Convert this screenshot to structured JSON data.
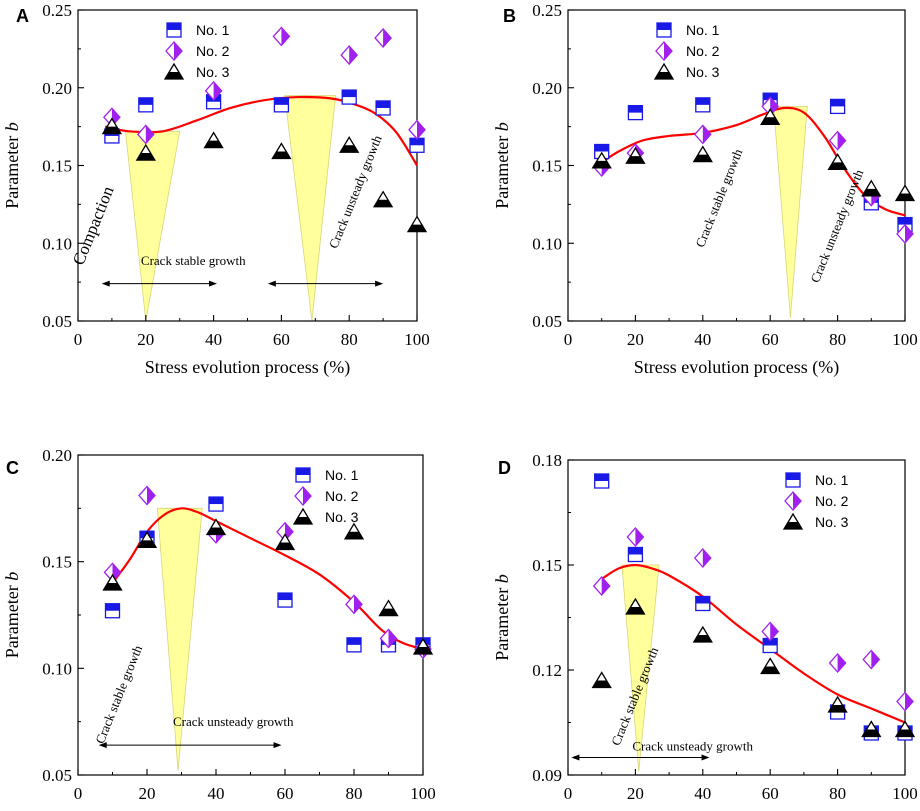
{
  "colors": {
    "no1": "#1a1ae6",
    "no2": "#a020f0",
    "no3": "#000000",
    "fit": "#ff0000",
    "zone": "#ffff8a",
    "zone_edge": "#d6d67a",
    "axis": "#000000"
  },
  "chart_data": [
    {
      "panel": "A",
      "type": "scatter",
      "xlabel": "Stress evolution process (%)",
      "ylabel": "Parameter b",
      "xlim": [
        0,
        100
      ],
      "ylim": [
        0.05,
        0.25
      ],
      "xticks": [
        0,
        20,
        40,
        60,
        80,
        100
      ],
      "xtick_labels": [
        "0",
        "20",
        "40",
        "60",
        "80",
        "100"
      ],
      "yticks": [
        0.05,
        0.1,
        0.15,
        0.2,
        0.25
      ],
      "ytick_labels": [
        "0.05",
        "0.10",
        "0.15",
        "0.20",
        "0.25"
      ],
      "legend": [
        "No. 1",
        "No. 2",
        "No. 3"
      ],
      "legend_position": "top-left",
      "x": [
        10,
        20,
        40,
        60,
        80,
        90,
        100
      ],
      "series": [
        {
          "name": "No. 1",
          "marker": "square-half",
          "values": [
            0.169,
            0.189,
            0.191,
            0.189,
            0.194,
            0.187,
            0.163
          ]
        },
        {
          "name": "No. 2",
          "marker": "diamond-half",
          "values": [
            0.181,
            0.17,
            0.198,
            0.233,
            0.221,
            0.232,
            0.173
          ]
        },
        {
          "name": "No. 3",
          "marker": "triangle-half",
          "values": [
            0.175,
            0.158,
            0.166,
            0.159,
            0.163,
            0.128,
            0.112
          ]
        }
      ],
      "fit_curve": {
        "x": [
          8,
          15,
          25,
          35,
          45,
          55,
          65,
          75,
          82,
          88,
          94,
          100
        ],
        "y": [
          0.175,
          0.172,
          0.172,
          0.179,
          0.187,
          0.192,
          0.194,
          0.193,
          0.189,
          0.183,
          0.171,
          0.15
        ]
      },
      "zones": [
        {
          "x0": 14,
          "x1": 30,
          "ytop": 0.172,
          "apex_x": 20,
          "apex_y": 0.05
        },
        {
          "x0": 61,
          "x1": 76,
          "ytop": 0.195,
          "apex_x": 69,
          "apex_y": 0.05
        }
      ],
      "annotations": [
        {
          "text": "Compaction",
          "x": 6,
          "y": 0.11,
          "rotate": -68,
          "size": 17
        },
        {
          "text": "Crack stable growth",
          "x": 34,
          "y": 0.086,
          "rotate": 0,
          "size": 13
        },
        {
          "text": "Crack unsteady growth",
          "x": 83,
          "y": 0.132,
          "rotate": -68,
          "size": 13
        }
      ],
      "arrows": [
        {
          "x0": 7,
          "x1": 41,
          "y": 0.074
        },
        {
          "x0": 56,
          "x1": 90,
          "y": 0.074
        }
      ]
    },
    {
      "panel": "B",
      "type": "scatter",
      "xlabel": "Stress evolution process (%)",
      "ylabel": "Parameter b",
      "xlim": [
        0,
        100
      ],
      "ylim": [
        0.05,
        0.25
      ],
      "xticks": [
        0,
        20,
        40,
        60,
        80,
        100
      ],
      "xtick_labels": [
        "0",
        "20",
        "40",
        "60",
        "80",
        "100"
      ],
      "yticks": [
        0.05,
        0.1,
        0.15,
        0.2,
        0.25
      ],
      "ytick_labels": [
        "0.05",
        "0.10",
        "0.15",
        "0.20",
        "0.25"
      ],
      "legend": [
        "No. 1",
        "No. 2",
        "No. 3"
      ],
      "legend_position": "top-left",
      "x": [
        10,
        20,
        40,
        60,
        80,
        90,
        100
      ],
      "series": [
        {
          "name": "No. 1",
          "marker": "square-half",
          "values": [
            0.159,
            0.184,
            0.189,
            0.192,
            0.188,
            0.126,
            0.112
          ]
        },
        {
          "name": "No. 2",
          "marker": "diamond-half",
          "values": [
            0.149,
            0.158,
            0.17,
            0.188,
            0.166,
            0.13,
            0.106
          ]
        },
        {
          "name": "No. 3",
          "marker": "triangle-half",
          "values": [
            0.153,
            0.156,
            0.157,
            0.181,
            0.152,
            0.135,
            0.132
          ]
        }
      ],
      "fit_curve": {
        "x": [
          10,
          15,
          22,
          30,
          40,
          50,
          58,
          64,
          70,
          76,
          82,
          88,
          94,
          100
        ],
        "y": [
          0.152,
          0.159,
          0.166,
          0.169,
          0.171,
          0.176,
          0.183,
          0.187,
          0.184,
          0.169,
          0.148,
          0.131,
          0.122,
          0.118
        ]
      },
      "zones": [
        {
          "x0": 61,
          "x1": 71,
          "ytop": 0.188,
          "apex_x": 66,
          "apex_y": 0.052
        }
      ],
      "annotations": [
        {
          "text": "Crack stable growth",
          "x": 46,
          "y": 0.128,
          "rotate": -68,
          "size": 13
        },
        {
          "text": "Crack unsteady growth",
          "x": 81,
          "y": 0.11,
          "rotate": -68,
          "size": 13
        }
      ],
      "arrows": []
    },
    {
      "panel": "C",
      "type": "scatter",
      "xlabel": "Stress evolution process (%)",
      "ylabel": "Parameter b",
      "xlim": [
        0,
        100
      ],
      "ylim": [
        0.05,
        0.2
      ],
      "xticks": [
        0,
        20,
        40,
        60,
        80,
        100
      ],
      "xtick_labels": [
        "0",
        "20",
        "40",
        "60",
        "80",
        "100"
      ],
      "yticks": [
        0.05,
        0.1,
        0.15,
        0.2
      ],
      "ytick_labels": [
        "0.05",
        "0.10",
        "0.15",
        "0.20"
      ],
      "legend": [
        "No. 1",
        "No. 2",
        "No. 3"
      ],
      "legend_position": "top-right",
      "x": [
        10,
        20,
        40,
        60,
        80,
        90,
        100
      ],
      "series": [
        {
          "name": "No. 1",
          "marker": "square-half",
          "values": [
            0.127,
            0.161,
            0.177,
            0.132,
            0.111,
            0.111,
            0.111
          ]
        },
        {
          "name": "No. 2",
          "marker": "diamond-half",
          "values": [
            0.145,
            0.181,
            0.163,
            0.164,
            0.13,
            0.114,
            0.109
          ]
        },
        {
          "name": "No. 3",
          "marker": "triangle-half",
          "values": [
            0.14,
            0.16,
            0.166,
            0.159,
            0.164,
            0.128,
            0.11
          ]
        }
      ],
      "fit_curve": {
        "x": [
          10,
          15,
          20,
          25,
          30,
          35,
          40,
          50,
          60,
          70,
          80,
          88,
          94,
          100
        ],
        "y": [
          0.14,
          0.151,
          0.164,
          0.172,
          0.175,
          0.173,
          0.169,
          0.161,
          0.153,
          0.144,
          0.131,
          0.118,
          0.112,
          0.109
        ]
      },
      "zones": [
        {
          "x0": 23,
          "x1": 36,
          "ytop": 0.175,
          "apex_x": 29,
          "apex_y": 0.052
        }
      ],
      "annotations": [
        {
          "text": "Crack stable growth",
          "x": 13,
          "y": 0.087,
          "rotate": -68,
          "size": 13
        },
        {
          "text": "Crack unsteady growth",
          "x": 45,
          "y": 0.073,
          "rotate": 0,
          "size": 13
        }
      ],
      "arrows": [
        {
          "x0": 6,
          "x1": 59,
          "y": 0.064
        }
      ]
    },
    {
      "panel": "D",
      "type": "scatter",
      "xlabel": "Stress evolution process (%)",
      "ylabel": "Parameter b",
      "xlim": [
        0,
        100
      ],
      "ylim": [
        0.09,
        0.18
      ],
      "xticks": [
        0,
        20,
        40,
        60,
        80,
        100
      ],
      "xtick_labels": [
        "0",
        "20",
        "40",
        "60",
        "80",
        "100"
      ],
      "yticks": [
        0.09,
        0.12,
        0.15,
        0.18
      ],
      "ytick_labels": [
        "0.09",
        "0.12",
        "0.15",
        "0.18"
      ],
      "legend": [
        "No. 1",
        "No. 2",
        "No. 3"
      ],
      "legend_position": "top-right",
      "x": [
        10,
        20,
        40,
        60,
        80,
        90,
        100
      ],
      "series": [
        {
          "name": "No. 1",
          "marker": "square-half",
          "values": [
            0.174,
            0.153,
            0.139,
            0.127,
            0.108,
            0.102,
            0.102
          ]
        },
        {
          "name": "No. 2",
          "marker": "diamond-half",
          "values": [
            0.144,
            0.158,
            0.152,
            0.131,
            0.122,
            0.123,
            0.111
          ]
        },
        {
          "name": "No. 3",
          "marker": "triangle-half",
          "values": [
            0.117,
            0.138,
            0.13,
            0.121,
            0.11,
            0.103,
            0.103
          ]
        }
      ],
      "fit_curve": {
        "x": [
          10,
          15,
          20,
          25,
          30,
          40,
          50,
          60,
          70,
          80,
          90,
          100
        ],
        "y": [
          0.146,
          0.149,
          0.15,
          0.149,
          0.147,
          0.141,
          0.133,
          0.126,
          0.119,
          0.113,
          0.109,
          0.105
        ]
      },
      "zones": [
        {
          "x0": 16,
          "x1": 27,
          "ytop": 0.15,
          "apex_x": 21,
          "apex_y": 0.091
        }
      ],
      "annotations": [
        {
          "text": "Crack stable growth",
          "x": 21,
          "y": 0.112,
          "rotate": -68,
          "size": 13
        },
        {
          "text": "Crack unsteady growth",
          "x": 37,
          "y": 0.097,
          "rotate": 0,
          "size": 13
        }
      ],
      "arrows": [
        {
          "x0": 1,
          "x1": 42,
          "y": 0.095
        }
      ]
    }
  ]
}
